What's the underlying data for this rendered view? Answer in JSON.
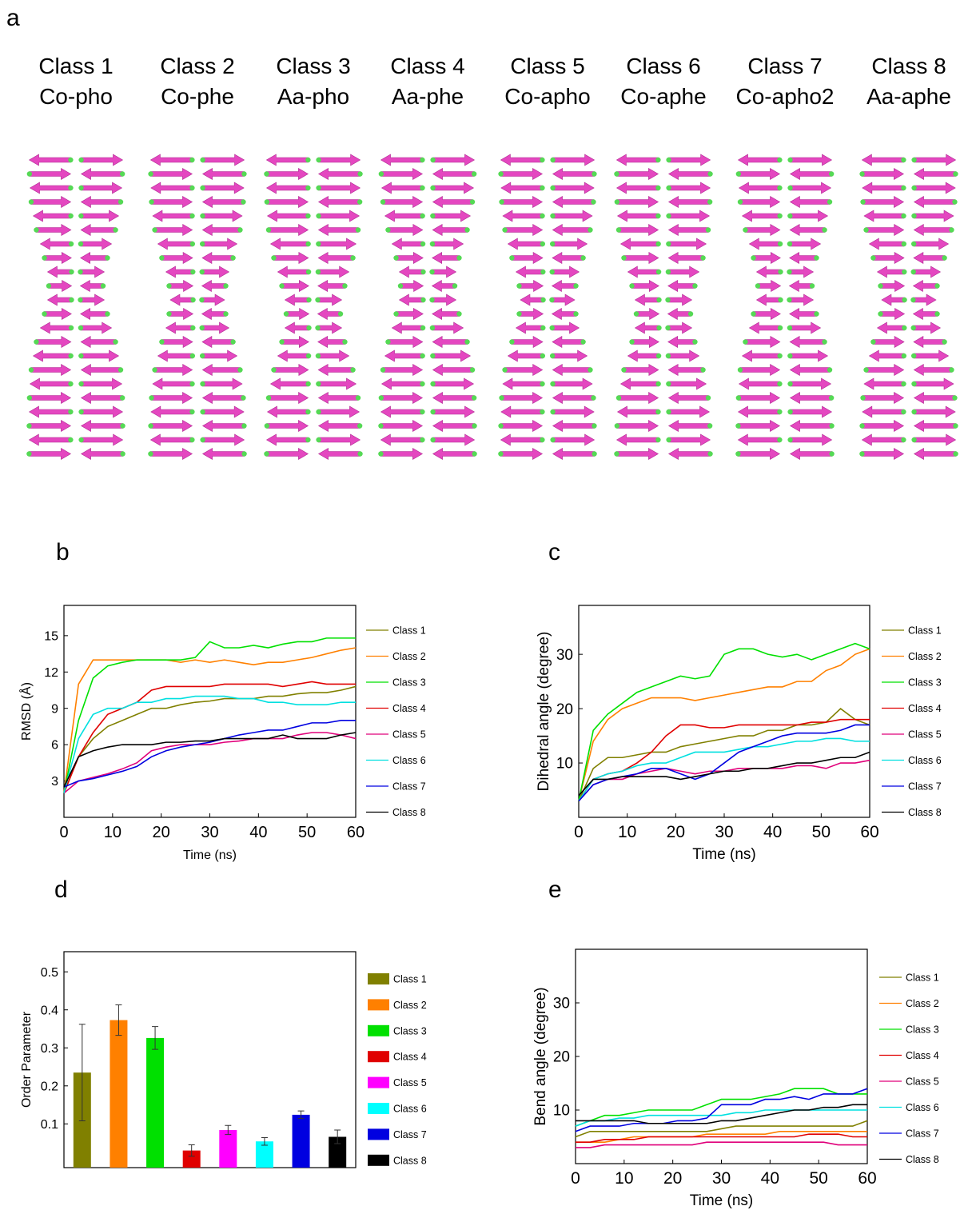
{
  "figure_label": "a",
  "structures": [
    {
      "class": "Class 1",
      "name": "Co-pho"
    },
    {
      "class": "Class 2",
      "name": "Co-phe"
    },
    {
      "class": "Class 3",
      "name": "Aa-pho"
    },
    {
      "class": "Class 4",
      "name": "Aa-phe"
    },
    {
      "class": "Class 5",
      "name": "Co-apho"
    },
    {
      "class": "Class 6",
      "name": "Co-aphe"
    },
    {
      "class": "Class 7",
      "name": "Co-apho2"
    },
    {
      "class": "Class 8",
      "name": "Aa-aphe"
    }
  ],
  "chart_data": [
    {
      "type": "line",
      "panel": "b",
      "xlabel": "Time (ns)",
      "ylabel": "RMSD (Å)",
      "xlim": [
        0,
        60
      ],
      "ylim": [
        0,
        17.5
      ],
      "xticks": [
        0,
        10,
        20,
        30,
        40,
        50,
        60
      ],
      "yticks": [
        3,
        6,
        9,
        12,
        15
      ],
      "x": [
        0,
        3,
        6,
        9,
        12,
        15,
        18,
        21,
        24,
        27,
        30,
        33,
        36,
        39,
        42,
        45,
        48,
        51,
        54,
        57,
        60
      ],
      "series": [
        {
          "name": "Class 1",
          "color": "#808000",
          "values": [
            2,
            5,
            6.5,
            7.5,
            8,
            8.5,
            9,
            9,
            9.3,
            9.5,
            9.6,
            9.8,
            9.8,
            9.8,
            10,
            10,
            10.2,
            10.3,
            10.3,
            10.5,
            10.8
          ]
        },
        {
          "name": "Class 2",
          "color": "#ff8000",
          "values": [
            2,
            11,
            13,
            13,
            13,
            13,
            13,
            13,
            12.8,
            13,
            12.8,
            13,
            12.8,
            12.6,
            12.8,
            12.8,
            13,
            13.2,
            13.5,
            13.8,
            14
          ]
        },
        {
          "name": "Class 3",
          "color": "#00e000",
          "values": [
            2,
            8,
            11.5,
            12.5,
            12.8,
            13,
            13,
            13,
            13,
            13.2,
            14.5,
            14,
            14,
            14.2,
            14,
            14.3,
            14.5,
            14.5,
            14.8,
            14.8,
            14.8
          ]
        },
        {
          "name": "Class 4",
          "color": "#e00000",
          "values": [
            2,
            5,
            7,
            8.5,
            9,
            9.5,
            10.5,
            10.8,
            10.8,
            10.8,
            10.8,
            11,
            11,
            11,
            11,
            10.8,
            11,
            11.2,
            11,
            11,
            11
          ]
        },
        {
          "name": "Class 5",
          "color": "#e0007a",
          "values": [
            2,
            3,
            3.3,
            3.6,
            4,
            4.5,
            5.5,
            5.8,
            6,
            6,
            6,
            6.2,
            6.3,
            6.5,
            6.5,
            6.5,
            6.8,
            7,
            7,
            6.8,
            6.5
          ]
        },
        {
          "name": "Class 6",
          "color": "#00e0e0",
          "values": [
            2,
            6.5,
            8.5,
            9,
            9,
            9.5,
            9.5,
            9.8,
            9.8,
            10,
            10,
            10,
            9.8,
            9.8,
            9.5,
            9.5,
            9.3,
            9.3,
            9.3,
            9.5,
            9.5
          ]
        },
        {
          "name": "Class 7",
          "color": "#0000e0",
          "values": [
            2.5,
            3,
            3.2,
            3.5,
            3.8,
            4.2,
            5,
            5.5,
            5.8,
            6,
            6.2,
            6.5,
            6.8,
            7,
            7.2,
            7.2,
            7.5,
            7.8,
            7.8,
            8,
            8
          ]
        },
        {
          "name": "Class 8",
          "color": "#000000",
          "values": [
            2.5,
            5,
            5.5,
            5.8,
            6,
            6,
            6,
            6.2,
            6.2,
            6.3,
            6.3,
            6.5,
            6.5,
            6.5,
            6.5,
            6.8,
            6.5,
            6.5,
            6.5,
            6.8,
            7
          ]
        }
      ]
    },
    {
      "type": "line",
      "panel": "c",
      "xlabel": "Time (ns)",
      "ylabel": "Dihedral angle (degree)",
      "xlim": [
        0,
        60
      ],
      "ylim": [
        0,
        39
      ],
      "xticks": [
        0,
        10,
        20,
        30,
        40,
        50,
        60
      ],
      "yticks": [
        10,
        20,
        30
      ],
      "x": [
        0,
        3,
        6,
        9,
        12,
        15,
        18,
        21,
        24,
        27,
        30,
        33,
        36,
        39,
        42,
        45,
        48,
        51,
        54,
        57,
        60
      ],
      "series": [
        {
          "name": "Class 1",
          "color": "#808000",
          "values": [
            3,
            9,
            11,
            11,
            11.5,
            12,
            12,
            13,
            13.5,
            14,
            14.5,
            15,
            15,
            16,
            16,
            17,
            17,
            17.5,
            20,
            18,
            17
          ]
        },
        {
          "name": "Class 2",
          "color": "#ff8000",
          "values": [
            3,
            14,
            18,
            20,
            21,
            22,
            22,
            22,
            21.5,
            22,
            22.5,
            23,
            23.5,
            24,
            24,
            25,
            25,
            27,
            28,
            30,
            31
          ]
        },
        {
          "name": "Class 3",
          "color": "#00e000",
          "values": [
            3,
            16,
            19,
            21,
            23,
            24,
            25,
            26,
            25.5,
            26,
            30,
            31,
            31,
            30,
            29.5,
            30,
            29,
            30,
            31,
            32,
            31
          ]
        },
        {
          "name": "Class 4",
          "color": "#e00000",
          "values": [
            3,
            7,
            8,
            8.5,
            10,
            12,
            15,
            17,
            17,
            16.5,
            16.5,
            17,
            17,
            17,
            17,
            17,
            17.5,
            17.5,
            18,
            18,
            18
          ]
        },
        {
          "name": "Class 5",
          "color": "#e0007a",
          "values": [
            3,
            6,
            7,
            7,
            8,
            8.5,
            9,
            8.5,
            8,
            8.5,
            8.5,
            9,
            9,
            9,
            9,
            9.5,
            9.5,
            9,
            10,
            10,
            10.5
          ]
        },
        {
          "name": "Class 6",
          "color": "#00e0e0",
          "values": [
            3,
            7,
            8,
            8.5,
            9.5,
            10,
            10,
            11,
            12,
            12,
            12,
            12.5,
            13,
            13,
            13.5,
            14,
            14,
            14.5,
            14.5,
            14,
            14
          ]
        },
        {
          "name": "Class 7",
          "color": "#0000e0",
          "values": [
            3,
            6,
            7,
            7.5,
            8,
            9,
            9,
            8,
            7,
            8,
            10,
            12,
            13,
            14,
            15,
            15.5,
            15.5,
            15.5,
            16,
            17,
            17
          ]
        },
        {
          "name": "Class 8",
          "color": "#000000",
          "values": [
            4,
            7,
            7,
            7.5,
            7.5,
            7.5,
            7.5,
            7,
            7.5,
            8,
            8.5,
            8.5,
            9,
            9,
            9.5,
            10,
            10,
            10.5,
            11,
            11,
            12
          ]
        }
      ]
    },
    {
      "type": "bar",
      "panel": "d",
      "ylabel": "Order Parameter",
      "ylim": [
        -0.015,
        0.553
      ],
      "yticks": [
        0.1,
        0.2,
        0.3,
        0.4,
        0.5
      ],
      "categories": [
        "Class 1",
        "Class 2",
        "Class 3",
        "Class 4",
        "Class 5",
        "Class 6",
        "Class 7",
        "Class 8"
      ],
      "values": [
        0.235,
        0.373,
        0.326,
        0.03,
        0.084,
        0.054,
        0.124,
        0.066
      ],
      "errors": [
        0.127,
        0.04,
        0.03,
        0.015,
        0.012,
        0.01,
        0.01,
        0.018
      ],
      "colors": [
        "#808000",
        "#ff8000",
        "#00e000",
        "#e00000",
        "#ff00ff",
        "#00ffff",
        "#0000e0",
        "#000000"
      ]
    },
    {
      "type": "line",
      "panel": "e",
      "xlabel": "Time (ns)",
      "ylabel": "Bend angle (degree)",
      "xlim": [
        0,
        60
      ],
      "ylim": [
        0,
        40
      ],
      "xticks": [
        0,
        10,
        20,
        30,
        40,
        50,
        60
      ],
      "yticks": [
        10,
        20,
        30
      ],
      "x": [
        0,
        3,
        6,
        9,
        12,
        15,
        18,
        21,
        24,
        27,
        30,
        33,
        36,
        39,
        42,
        45,
        48,
        51,
        54,
        57,
        60
      ],
      "series": [
        {
          "name": "Class 1",
          "color": "#808000",
          "values": [
            5,
            6,
            6,
            6,
            6,
            6,
            6,
            6,
            6,
            6,
            6.5,
            7,
            7,
            7,
            7,
            7,
            7,
            7,
            7,
            7,
            8
          ]
        },
        {
          "name": "Class 2",
          "color": "#ff8000",
          "values": [
            4,
            4,
            4,
            4.5,
            5,
            5,
            5,
            5,
            5,
            5.5,
            5.5,
            5.5,
            5.5,
            5.5,
            6,
            6,
            6,
            6,
            6,
            6,
            6
          ]
        },
        {
          "name": "Class 3",
          "color": "#00e000",
          "values": [
            7,
            8,
            9,
            9,
            9.5,
            10,
            10,
            10,
            10,
            11,
            12,
            12,
            12,
            12.5,
            13,
            14,
            14,
            14,
            13,
            13,
            13
          ]
        },
        {
          "name": "Class 4",
          "color": "#e00000",
          "values": [
            4,
            4,
            4.5,
            4.5,
            4.5,
            5,
            5,
            5,
            5,
            5,
            5,
            5,
            5,
            5,
            5,
            5,
            5.5,
            5.5,
            5.5,
            5,
            5
          ]
        },
        {
          "name": "Class 5",
          "color": "#e0007a",
          "values": [
            3,
            3,
            3.5,
            3.5,
            3.5,
            3.5,
            3.5,
            3.5,
            3.5,
            4,
            4,
            4,
            4,
            4,
            4,
            4,
            4,
            4,
            3.5,
            3.5,
            3.5
          ]
        },
        {
          "name": "Class 6",
          "color": "#00e0e0",
          "values": [
            7,
            8,
            8,
            8.5,
            8.5,
            9,
            9,
            9,
            9,
            9,
            9,
            9.5,
            9.5,
            10,
            10,
            10,
            10,
            10,
            10,
            10,
            10
          ]
        },
        {
          "name": "Class 7",
          "color": "#0000e0",
          "values": [
            6,
            7,
            7,
            7,
            7.5,
            7.5,
            7.5,
            8,
            8,
            8.5,
            11,
            11,
            11,
            12,
            12,
            12.5,
            12,
            13,
            13,
            13,
            14
          ]
        },
        {
          "name": "Class 8",
          "color": "#000000",
          "values": [
            8,
            8,
            8,
            8,
            8,
            7.5,
            7.5,
            7.5,
            7.5,
            7.5,
            8,
            8,
            8.5,
            9,
            9.5,
            10,
            10,
            10.5,
            10.5,
            11,
            11
          ]
        }
      ]
    }
  ]
}
